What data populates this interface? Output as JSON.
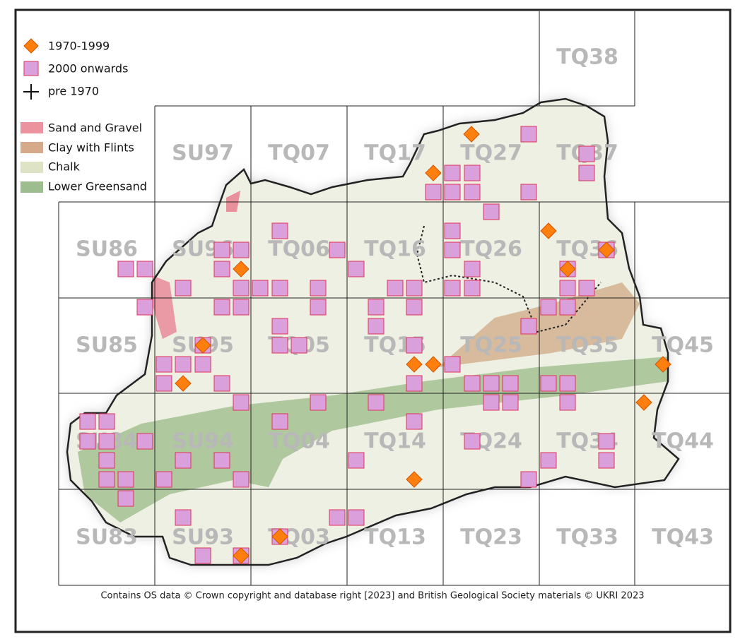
{
  "legend": {
    "records": [
      "1970-1999",
      "2000 onwards",
      "pre 1970"
    ],
    "geology": [
      "Sand and Gravel",
      "Clay with Flints",
      "Chalk",
      "Lower Greensand"
    ]
  },
  "grid_labels": [
    "TQ38",
    "SU97",
    "TQ07",
    "TQ17",
    "TQ27",
    "TQ37",
    "SU86",
    "SU96",
    "TQ06",
    "TQ16",
    "TQ26",
    "TQ36",
    "SU85",
    "SU95",
    "TQ05",
    "TQ15",
    "TQ25",
    "TQ35",
    "TQ45",
    "SU84",
    "SU94",
    "TQ04",
    "TQ14",
    "TQ24",
    "TQ34",
    "TQ44",
    "SU83",
    "SU93",
    "TQ03",
    "TQ13",
    "TQ23",
    "TQ33",
    "TQ43"
  ],
  "attribution": "Contains OS data  © Crown copyright and database right [2023] and British Geological Society materials © UKRI 2023"
}
